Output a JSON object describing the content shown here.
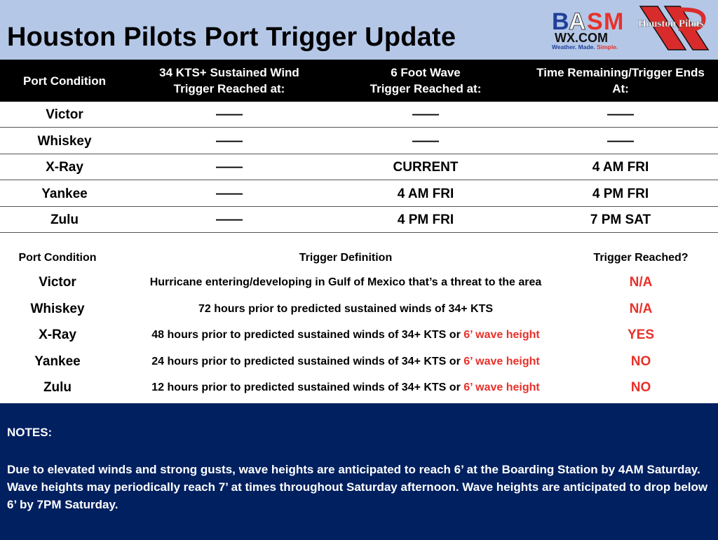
{
  "header": {
    "title": "Houston Pilots Port Trigger Update",
    "logos": {
      "basm": "BASM WX.COM Weather. Made. Simple.",
      "houston_pilots": "Houston Pilots"
    }
  },
  "table1": {
    "columns": [
      "Port Condition",
      "34 KTS+ Sustained Wind\nTrigger Reached at:",
      "6 Foot Wave\nTrigger Reached at:",
      "Time Remaining/Trigger Ends\nAt:"
    ],
    "col_lines": [
      [
        "Port Condition"
      ],
      [
        "34 KTS+ Sustained Wind",
        "Trigger Reached at:"
      ],
      [
        "6 Foot Wave",
        "Trigger Reached at:"
      ],
      [
        "Time Remaining/Trigger Ends",
        "At:"
      ]
    ],
    "rows": [
      [
        "Victor",
        "——",
        "——",
        "——"
      ],
      [
        "Whiskey",
        "——",
        "——",
        "——"
      ],
      [
        "X-Ray",
        "——",
        "CURRENT",
        "4 AM FRI"
      ],
      [
        "Yankee",
        "——",
        "4 AM FRI",
        "4 PM FRI"
      ],
      [
        "Zulu",
        "——",
        "4 PM FRI",
        "7 PM SAT"
      ]
    ]
  },
  "table2": {
    "columns": [
      "Port Condition",
      "Trigger Definition",
      "Trigger Reached?"
    ],
    "rows": [
      {
        "condition": "Victor",
        "definition": "Hurricane entering/developing in Gulf of Mexico that’s a threat to the area",
        "definition_red": "",
        "reached": "N/A"
      },
      {
        "condition": "Whiskey",
        "definition": "72 hours prior to predicted sustained winds of 34+ KTS",
        "definition_red": "",
        "reached": "N/A"
      },
      {
        "condition": "X-Ray",
        "definition": "48 hours prior to predicted sustained winds of 34+ KTS or ",
        "definition_red": "6’ wave height",
        "reached": "YES"
      },
      {
        "condition": "Yankee",
        "definition": "24 hours prior to predicted sustained winds of 34+ KTS or ",
        "definition_red": "6’ wave height",
        "reached": "NO"
      },
      {
        "condition": "Zulu",
        "definition": "12 hours prior to predicted sustained winds of 34+ KTS or ",
        "definition_red": "6’ wave height",
        "reached": "NO"
      }
    ]
  },
  "notes": {
    "heading": "NOTES:",
    "text": "Due to elevated winds and strong gusts, wave heights are anticipated to reach 6’ at the Boarding Station by 4AM Saturday. Wave heights may periodically reach 7’ at times throughout Saturday afternoon. Wave heights are anticipated to drop below 6’ by 7PM Saturday."
  },
  "colors": {
    "top_band": "#b4c7e7",
    "header_bg": "#000000",
    "notes_bg": "#002060",
    "accent_red": "#e8312a"
  }
}
